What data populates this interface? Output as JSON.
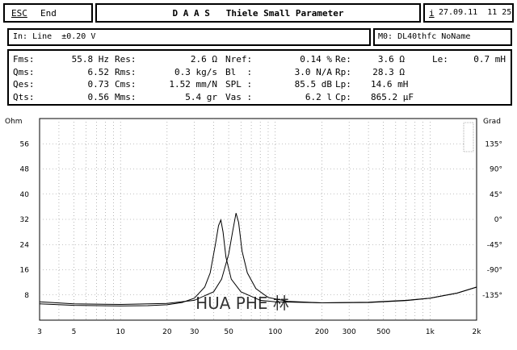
{
  "header": {
    "esc_label": "ESC",
    "end_label": "End",
    "title": "D A A S   Thiele Small Parameter",
    "info_icon": "i",
    "datetime": "27.09.11  11 25"
  },
  "input_bar": {
    "input_text": "In: Line  ±0.20 V",
    "memory_text": "M0: DL40thfc NoName"
  },
  "params": [
    [
      {
        "k": "Fms:",
        "v": "55.8 Hz"
      },
      {
        "k": "Res:",
        "v": "2.6 Ω"
      },
      {
        "k": "Nref:",
        "v": "0.14 %"
      },
      {
        "k": "Re:",
        "v": "3.6 Ω"
      },
      {
        "k": "Le:",
        "v": "0.7 mH"
      }
    ],
    [
      {
        "k": "Qms:",
        "v": "6.52"
      },
      {
        "k": "Rms:",
        "v": "0.3 kg/s"
      },
      {
        "k": "Bl  :",
        "v": "3.0 N/A"
      },
      {
        "k": "Rp:",
        "v": "28.3 Ω"
      }
    ],
    [
      {
        "k": "Qes:",
        "v": "0.73"
      },
      {
        "k": "Cms:",
        "v": "1.52 mm/N"
      },
      {
        "k": "SPL :",
        "v": "85.5 dB"
      },
      {
        "k": "Lp:",
        "v": "14.6 mH"
      }
    ],
    [
      {
        "k": "Qts:",
        "v": "0.56"
      },
      {
        "k": "Mms:",
        "v": "5.4 gr"
      },
      {
        "k": "Vas :",
        "v": "6.2 l"
      },
      {
        "k": "Cp:",
        "v": "865.2 µF"
      }
    ]
  ],
  "watermark": "HUA  PHE  林",
  "chart_data": {
    "type": "line",
    "left_axis_label": "Ohm",
    "right_axis_label": "Grad",
    "x_ticks": [
      "3",
      "5",
      "10",
      "20",
      "30",
      "50",
      "100",
      "200",
      "300",
      "500",
      "1k",
      "2k"
    ],
    "x_tick_values": [
      3,
      5,
      10,
      20,
      30,
      50,
      100,
      200,
      300,
      500,
      1000,
      2000
    ],
    "x_scale": "log",
    "xlim": [
      3,
      2000
    ],
    "left_ticks": [
      "56",
      "48",
      "40",
      "32",
      "24",
      "16",
      "8"
    ],
    "left_tick_values": [
      56,
      48,
      40,
      32,
      24,
      16,
      8
    ],
    "ylim_ohm": [
      0,
      64
    ],
    "right_ticks": [
      "135°",
      "90°",
      "45°",
      "0°",
      "-45°",
      "-90°",
      "-135°"
    ],
    "right_tick_values": [
      135,
      90,
      45,
      0,
      -45,
      -90,
      -135
    ],
    "ylim_deg": [
      -180,
      180
    ],
    "grid": true,
    "series": [
      {
        "points": [
          [
            3,
            5.2
          ],
          [
            5,
            4.7
          ],
          [
            10,
            4.5
          ],
          [
            15,
            4.6
          ],
          [
            20,
            4.9
          ],
          [
            25,
            5.6
          ],
          [
            30,
            7.0
          ],
          [
            35,
            10.5
          ],
          [
            38,
            15.0
          ],
          [
            41,
            24.0
          ],
          [
            43,
            30.0
          ],
          [
            44.5,
            31.8
          ],
          [
            46,
            28.0
          ],
          [
            48,
            20.0
          ],
          [
            52,
            13.0
          ],
          [
            60,
            9.0
          ],
          [
            80,
            6.3
          ],
          [
            100,
            5.8
          ],
          [
            200,
            5.5
          ],
          [
            400,
            5.7
          ],
          [
            700,
            6.3
          ],
          [
            1000,
            7.0
          ],
          [
            1500,
            8.6
          ],
          [
            2000,
            10.5
          ]
        ]
      },
      {
        "points": [
          [
            3,
            5.8
          ],
          [
            5,
            5.2
          ],
          [
            10,
            5.0
          ],
          [
            20,
            5.3
          ],
          [
            30,
            6.3
          ],
          [
            40,
            9.0
          ],
          [
            45,
            13.0
          ],
          [
            50,
            21.0
          ],
          [
            53,
            28.0
          ],
          [
            55.8,
            34.0
          ],
          [
            58,
            31.0
          ],
          [
            61,
            22.0
          ],
          [
            66,
            15.0
          ],
          [
            75,
            10.0
          ],
          [
            90,
            7.2
          ],
          [
            120,
            6.0
          ],
          [
            200,
            5.5
          ],
          [
            400,
            5.6
          ],
          [
            700,
            6.2
          ],
          [
            1000,
            7.0
          ],
          [
            1500,
            8.6
          ],
          [
            2000,
            10.5
          ]
        ]
      }
    ]
  }
}
